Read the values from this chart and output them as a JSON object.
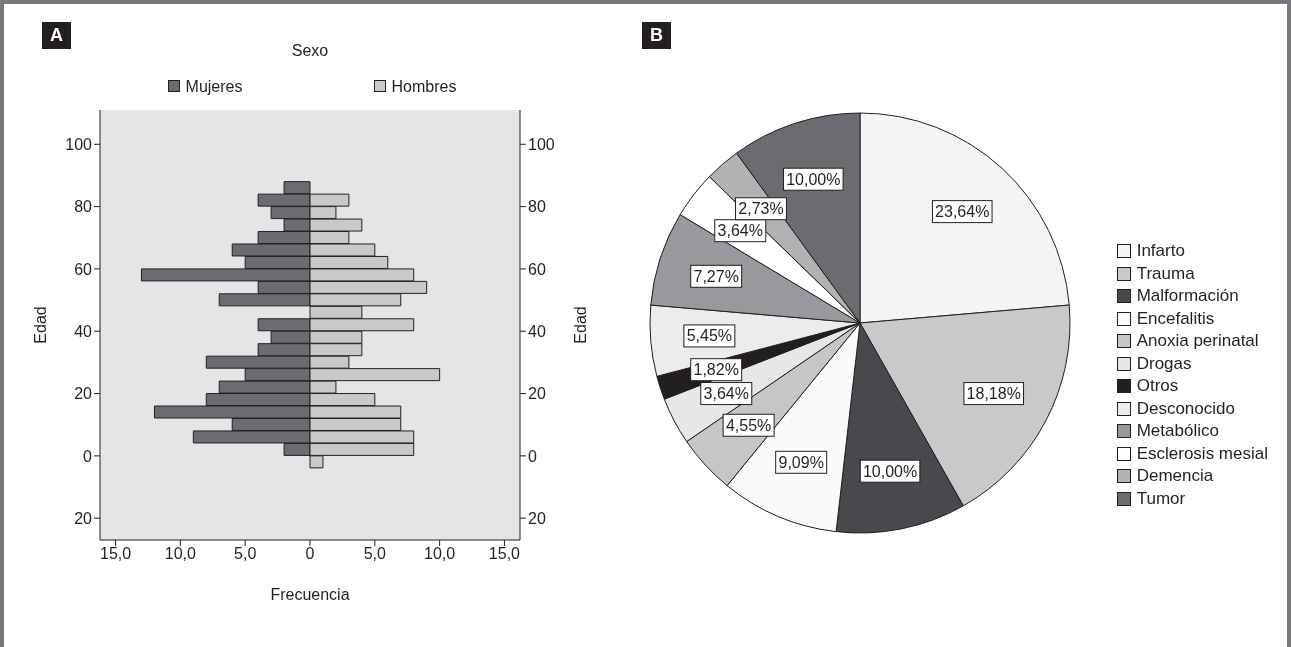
{
  "chart_data": [
    {
      "type": "bar",
      "orientation": "horizontal",
      "stacked": true,
      "title": "A",
      "legend_title": "Sexo",
      "xlabel": "Frecuencia",
      "ylabel": "Edad",
      "y2label": "Edad",
      "legend": "top",
      "x": [
        -2,
        2,
        6,
        10,
        14,
        18,
        22,
        26,
        30,
        34,
        38,
        42,
        46,
        50,
        54,
        58,
        62,
        66,
        70,
        74,
        78,
        82,
        86
      ],
      "series": [
        {
          "name": "Mujeres",
          "color": "#6b6c70",
          "values": [
            null,
            -2,
            -9,
            -6,
            -12,
            -8,
            -7,
            -5,
            -8,
            -4,
            -3,
            -4,
            null,
            -7,
            -4,
            -13,
            -5,
            -6,
            -4,
            -2,
            -3,
            -4,
            -2
          ]
        },
        {
          "name": "Hombres",
          "color": "#c8c9cb",
          "values": [
            1,
            8,
            8,
            7,
            7,
            5,
            2,
            10,
            3,
            4,
            4,
            8,
            4,
            7,
            9,
            8,
            6,
            5,
            3,
            4,
            2,
            3,
            null
          ]
        }
      ],
      "xlim": [
        -16.2,
        16.2
      ],
      "xticks": [
        {
          "value": -15,
          "label": "15,0"
        },
        {
          "value": -10,
          "label": "10,0"
        },
        {
          "value": -5,
          "label": "5,0"
        },
        0,
        {
          "value": 5,
          "label": "5,0"
        },
        {
          "value": 10,
          "label": "10,0"
        },
        {
          "value": 15,
          "label": "15,0"
        }
      ],
      "ylim": [
        -27,
        111
      ],
      "yticks": [
        {
          "value": -20,
          "label": "20"
        },
        0,
        20,
        40,
        60,
        80,
        100
      ],
      "y2lim": [
        -27,
        111
      ],
      "y2ticks": [
        {
          "value": -20,
          "label": "20"
        },
        0,
        20,
        40,
        60,
        80,
        100
      ]
    },
    {
      "type": "pie",
      "title": "B",
      "legend": "right",
      "categories": [
        "Infarto",
        "Trauma",
        "Malformación",
        "Encefalitis",
        "Anoxia perinatal",
        "Drogas",
        "Otros",
        "Desconocido",
        "Metabólico",
        "Esclerosis mesial",
        "Demencia",
        "Tumor"
      ],
      "values": [
        23.64,
        18.18,
        10.0,
        9.09,
        4.55,
        3.64,
        1.82,
        5.45,
        7.27,
        3.64,
        2.73,
        10.0
      ],
      "value_labels": [
        "23,64%",
        "18,18%",
        "10,00%",
        "9,09%",
        "4,55%",
        "3,64%",
        "1,82%",
        "5,45%",
        "7,27%",
        "3,64%",
        "2,73%",
        "10,00%"
      ],
      "colors": [
        "#f4f4f4",
        "#c8c9cb",
        "#48494c",
        "#fafafa",
        "#c5c6c8",
        "#e6e7e8",
        "#231f20",
        "#ececec",
        "#98999c",
        "#ffffff",
        "#b1b2b4",
        "#6b6c70"
      ]
    }
  ]
}
